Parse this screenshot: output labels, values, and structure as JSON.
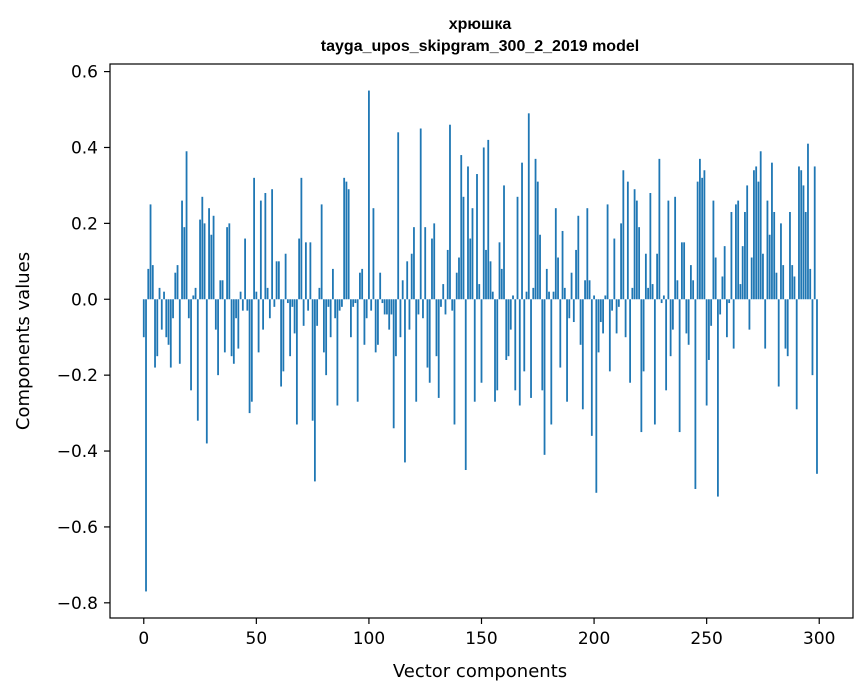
{
  "chart_data": {
    "type": "bar",
    "title": "хрюшка",
    "subtitle": "tayga_upos_skipgram_300_2_2019 model",
    "xlabel": "Vector components",
    "ylabel": "Components values",
    "xlim": [
      -15,
      315
    ],
    "ylim": [
      -0.84,
      0.62
    ],
    "xticks": [
      0,
      50,
      100,
      150,
      200,
      250,
      300
    ],
    "xtick_labels": [
      "0",
      "50",
      "100",
      "150",
      "200",
      "250",
      "300"
    ],
    "yticks": [
      -0.8,
      -0.6,
      -0.4,
      -0.2,
      0.0,
      0.2,
      0.4,
      0.6
    ],
    "ytick_labels": [
      "−0.8",
      "−0.6",
      "−0.4",
      "−0.2",
      "0.0",
      "0.2",
      "0.4",
      "0.6"
    ],
    "bar_color": "#1f77b4",
    "grid": false,
    "values": [
      -0.1,
      -0.77,
      0.08,
      0.25,
      0.09,
      -0.18,
      -0.15,
      0.03,
      -0.08,
      0.02,
      -0.1,
      -0.12,
      -0.18,
      -0.05,
      0.07,
      0.09,
      -0.17,
      0.26,
      0.19,
      0.39,
      -0.05,
      -0.24,
      0.01,
      0.03,
      -0.32,
      0.21,
      0.27,
      0.2,
      -0.38,
      0.24,
      0.17,
      0.22,
      -0.08,
      -0.2,
      0.05,
      0.05,
      -0.14,
      0.19,
      0.2,
      -0.15,
      -0.17,
      -0.05,
      -0.13,
      0.02,
      -0.03,
      0.16,
      -0.03,
      -0.3,
      -0.27,
      0.32,
      0.02,
      -0.14,
      0.26,
      -0.08,
      0.28,
      0.03,
      -0.05,
      0.29,
      -0.02,
      0.1,
      0.1,
      -0.23,
      -0.19,
      0.12,
      -0.01,
      -0.15,
      -0.02,
      -0.09,
      -0.33,
      0.16,
      0.32,
      -0.07,
      0.15,
      -0.03,
      0.15,
      -0.32,
      -0.48,
      -0.07,
      0.03,
      0.25,
      -0.14,
      -0.2,
      -0.02,
      -0.1,
      0.08,
      -0.05,
      -0.28,
      -0.03,
      -0.02,
      0.32,
      0.31,
      0.29,
      -0.1,
      -0.02,
      -0.01,
      -0.27,
      0.07,
      0.08,
      -0.12,
      -0.05,
      0.55,
      -0.03,
      0.24,
      -0.14,
      -0.12,
      0.07,
      -0.01,
      -0.04,
      -0.04,
      -0.08,
      -0.04,
      -0.34,
      -0.15,
      0.44,
      -0.1,
      0.05,
      -0.43,
      0.1,
      -0.08,
      0.12,
      0.19,
      -0.27,
      -0.04,
      0.45,
      -0.05,
      0.19,
      -0.18,
      -0.22,
      0.16,
      0.2,
      -0.15,
      -0.26,
      -0.02,
      0.04,
      -0.04,
      0.13,
      0.46,
      -0.03,
      -0.33,
      0.07,
      0.11,
      0.38,
      0.27,
      -0.45,
      0.35,
      0.16,
      0.24,
      -0.27,
      0.33,
      0.04,
      -0.22,
      0.4,
      0.13,
      0.42,
      0.1,
      0.02,
      -0.27,
      -0.24,
      0.15,
      0.08,
      0.3,
      -0.16,
      -0.15,
      -0.08,
      0.01,
      -0.24,
      0.27,
      -0.28,
      0.36,
      -0.19,
      0.02,
      0.49,
      -0.26,
      0.03,
      0.37,
      0.31,
      0.17,
      -0.24,
      -0.41,
      0.08,
      0.02,
      -0.33,
      0.02,
      0.24,
      0.11,
      -0.18,
      0.18,
      0.03,
      -0.27,
      -0.05,
      0.07,
      -0.06,
      0.13,
      0.22,
      -0.12,
      -0.29,
      0.05,
      0.24,
      0.05,
      -0.36,
      0.01,
      -0.51,
      -0.14,
      -0.06,
      -0.09,
      0.01,
      0.25,
      -0.19,
      -0.03,
      0.16,
      -0.09,
      -0.02,
      0.2,
      0.34,
      -0.1,
      0.31,
      -0.22,
      0.03,
      0.29,
      0.26,
      0.19,
      -0.35,
      -0.19,
      0.12,
      0.03,
      0.28,
      0.04,
      -0.33,
      0.12,
      0.37,
      -0.01,
      0.01,
      -0.24,
      0.26,
      -0.15,
      -0.08,
      0.27,
      0.05,
      -0.35,
      0.15,
      0.15,
      -0.09,
      -0.12,
      0.09,
      0.05,
      -0.5,
      0.31,
      0.37,
      0.32,
      0.34,
      -0.28,
      -0.16,
      -0.07,
      0.26,
      0.11,
      -0.52,
      -0.04,
      0.06,
      0.14,
      -0.1,
      -0.01,
      0.23,
      -0.13,
      0.25,
      0.26,
      0.04,
      0.14,
      0.23,
      0.3,
      -0.08,
      0.11,
      0.34,
      0.35,
      0.31,
      0.39,
      0.12,
      -0.13,
      0.26,
      0.17,
      0.36,
      0.23,
      0.07,
      -0.23,
      0.2,
      0.09,
      -0.13,
      -0.15,
      0.23,
      0.09,
      0.06,
      -0.29,
      0.35,
      0.34,
      0.3,
      0.23,
      0.41,
      0.08,
      -0.2,
      0.35,
      -0.46,
      0.0
    ]
  }
}
